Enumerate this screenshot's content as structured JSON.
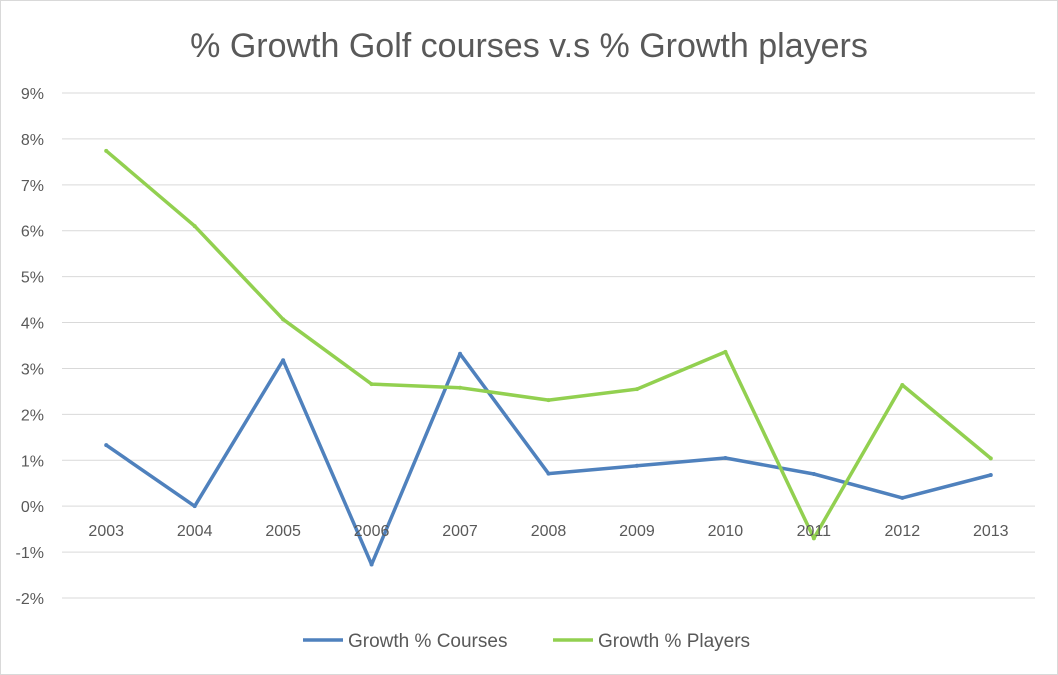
{
  "chart_data": {
    "type": "line",
    "title": "% Growth Golf courses v.s % Growth players",
    "xlabel": "",
    "ylabel": "",
    "categories": [
      "2003",
      "2004",
      "2005",
      "2006",
      "2007",
      "2008",
      "2009",
      "2010",
      "2011",
      "2012",
      "2013"
    ],
    "ylim": [
      -2,
      9
    ],
    "yticks": [
      -2,
      -1,
      0,
      1,
      2,
      3,
      4,
      5,
      6,
      7,
      8,
      9
    ],
    "y_tick_labels": [
      "-2%",
      "-1%",
      "0%",
      "1%",
      "2%",
      "3%",
      "4%",
      "5%",
      "6%",
      "7%",
      "8%",
      "9%"
    ],
    "grid": true,
    "legend": "bottom",
    "series": [
      {
        "name": "Growth % Courses",
        "color": "#4f81bd",
        "values": [
          1.33,
          0.0,
          3.18,
          -1.27,
          3.32,
          0.71,
          0.88,
          1.05,
          0.7,
          0.18,
          0.68
        ]
      },
      {
        "name": "Growth % Players",
        "color": "#92d050",
        "values": [
          7.74,
          6.1,
          4.07,
          2.66,
          2.58,
          2.31,
          2.55,
          3.36,
          -0.7,
          2.64,
          1.04
        ]
      }
    ]
  }
}
